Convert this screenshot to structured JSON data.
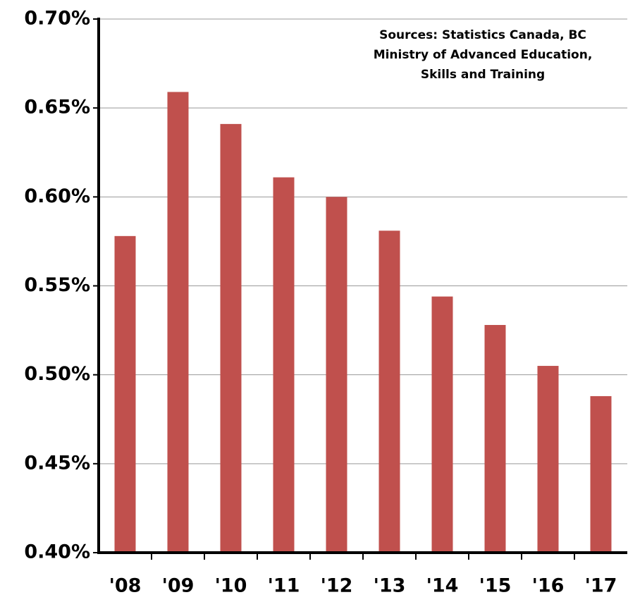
{
  "chart_data": {
    "type": "bar",
    "annotation": [
      "Sources: Statistics Canada, BC",
      "Ministry of Advanced Education,",
      "Skills and Training"
    ],
    "categories": [
      "'08",
      "'09",
      "'10",
      "'11",
      "'12",
      "'13",
      "'14",
      "'15",
      "'16",
      "'17"
    ],
    "values": [
      0.578,
      0.659,
      0.641,
      0.611,
      0.6,
      0.581,
      0.544,
      0.528,
      0.505,
      0.488
    ],
    "color": "#c0504d",
    "ylim": [
      0.4,
      0.7
    ],
    "yticks": [
      {
        "value": 0.4,
        "label": "0.40%"
      },
      {
        "value": 0.45,
        "label": "0.45%"
      },
      {
        "value": 0.5,
        "label": "0.50%"
      },
      {
        "value": 0.55,
        "label": "0.55%"
      },
      {
        "value": 0.6,
        "label": "0.60%"
      },
      {
        "value": 0.65,
        "label": "0.65%"
      },
      {
        "value": 0.7,
        "label": "0.70%"
      }
    ],
    "grid": true
  }
}
